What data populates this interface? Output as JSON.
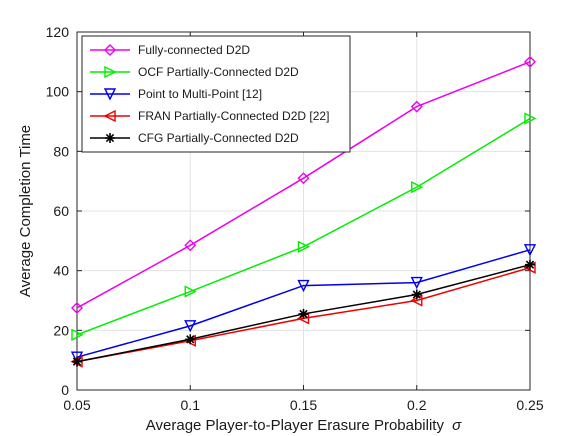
{
  "chart_data": {
    "type": "line",
    "xlabel": "Average Player-to-Player Erasure Probability",
    "xlabel_symbol": "σ",
    "ylabel": "Average Completion Time",
    "xlim": [
      0.05,
      0.25
    ],
    "ylim": [
      0,
      120
    ],
    "x_ticks": [
      "0.05",
      "0.1",
      "0.15",
      "0.2",
      "0.25"
    ],
    "y_ticks": [
      "0",
      "20",
      "40",
      "60",
      "80",
      "100",
      "120"
    ],
    "grid": true,
    "legend_position": "top-left",
    "x": [
      0.05,
      0.1,
      0.15,
      0.2,
      0.25
    ],
    "series": [
      {
        "name": "Fully-connected D2D",
        "color": "#ee00ee",
        "marker": "diamond",
        "values": [
          27.5,
          48.5,
          71,
          95,
          110
        ]
      },
      {
        "name": "OCF Partially-Connected D2D",
        "color": "#00ee00",
        "marker": "triangle-right",
        "values": [
          18.5,
          33,
          48,
          68,
          91
        ]
      },
      {
        "name": "Point to Multi-Point [12]",
        "color": "#0000ee",
        "marker": "triangle-down",
        "values": [
          11,
          21.5,
          35,
          36,
          47
        ]
      },
      {
        "name": "FRAN Partially-Connected D2D  [22]",
        "color": "#ee0000",
        "marker": "triangle-left",
        "values": [
          9.5,
          16.5,
          24,
          30,
          41
        ]
      },
      {
        "name": "CFG Partially-Connected D2D",
        "color": "#000000",
        "marker": "asterisk",
        "values": [
          9.5,
          17,
          25.5,
          32,
          42
        ]
      }
    ]
  }
}
